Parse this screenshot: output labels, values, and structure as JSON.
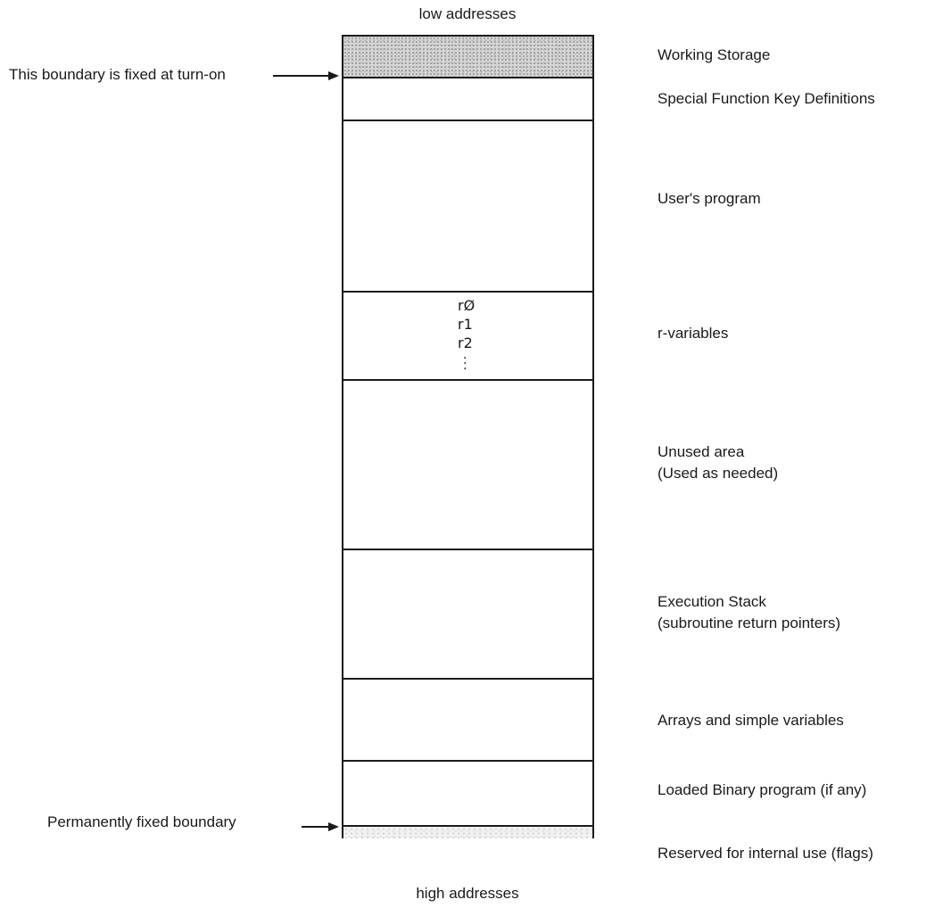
{
  "diagram": {
    "top_caption": "low addresses",
    "bottom_caption": "high addresses",
    "left_annotations": [
      {
        "text": "This boundary is fixed at turn-on"
      },
      {
        "text": "Permanently fixed boundary"
      }
    ],
    "regions": [
      {
        "label": "Working Storage",
        "label_line2": "",
        "fill": "shaded-dark"
      },
      {
        "label": "Special Function Key Definitions",
        "label_line2": "",
        "fill": "none"
      },
      {
        "label": "User's program",
        "label_line2": "",
        "fill": "none"
      },
      {
        "label": "r-variables",
        "label_line2": "",
        "fill": "none",
        "contents": [
          "rØ",
          "r1",
          "r2"
        ]
      },
      {
        "label": "Unused area",
        "label_line2": "(Used as needed)",
        "fill": "none"
      },
      {
        "label": "Execution Stack",
        "label_line2": "(subroutine return pointers)",
        "fill": "none"
      },
      {
        "label": "Arrays and simple variables",
        "label_line2": "",
        "fill": "none"
      },
      {
        "label": "Loaded Binary program (if any)",
        "label_line2": "",
        "fill": "none"
      },
      {
        "label": "Reserved for internal use (flags)",
        "label_line2": "",
        "fill": "shaded-light"
      }
    ]
  }
}
